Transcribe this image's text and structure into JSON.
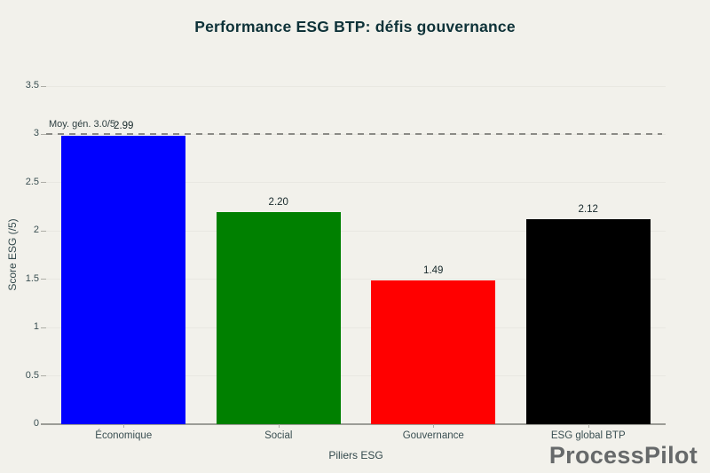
{
  "title": "Performance ESG BTP: défis gouvernance",
  "watermark": "ProcessPilot",
  "colors": {
    "background": "#f2f1eb",
    "title_text": "#0e3238",
    "axis_text": "#3a4f52",
    "axis_line": "#9c9c96",
    "gridline": "#e9e8e1",
    "reference_line": "#8b8b86",
    "watermark_text": "#66696a"
  },
  "chart_data": {
    "type": "bar",
    "title": "Performance ESG BTP: défis gouvernance",
    "categories": [
      "Économique",
      "Social",
      "Gouvernance",
      "ESG global BTP"
    ],
    "values": [
      2.99,
      2.2,
      1.49,
      2.12
    ],
    "value_labels": [
      "2.99",
      "2.20",
      "1.49",
      "2.12"
    ],
    "bar_colors": [
      "#0000ff",
      "#008000",
      "#ff0000",
      "#000000"
    ],
    "xlabel": "Piliers ESG",
    "ylabel": "Score ESG (/5)",
    "ylim": [
      0,
      3.5
    ],
    "yticks": [
      0,
      0.5,
      1,
      1.5,
      2,
      2.5,
      3,
      3.5
    ],
    "ytick_labels": [
      "0",
      "0.5",
      "1",
      "1.5",
      "2",
      "2.5",
      "3",
      "3.5"
    ],
    "grid": true,
    "legend": false,
    "reference_line": {
      "value": 3.0,
      "label": "Moy. gén. 3.0/5",
      "style": "dashed"
    }
  }
}
